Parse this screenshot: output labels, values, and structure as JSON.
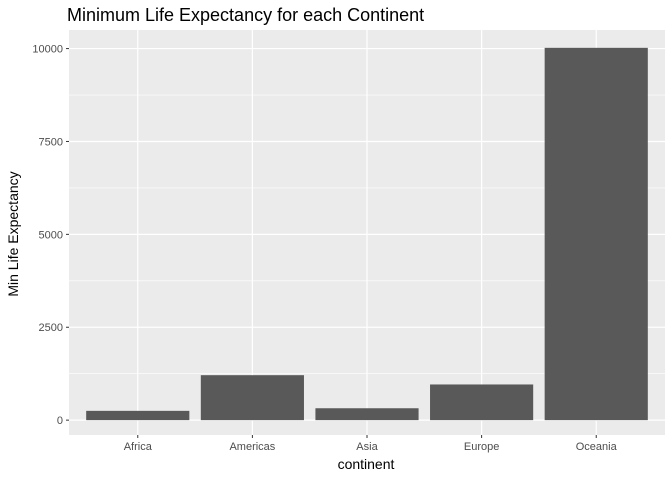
{
  "chart_data": {
    "type": "bar",
    "title": "Minimum Life Expectancy for each Continent",
    "xlabel": "continent",
    "ylabel": "Min Life Expectancy",
    "categories": [
      "Africa",
      "Americas",
      "Asia",
      "Europe",
      "Oceania"
    ],
    "values": [
      250,
      1210,
      320,
      960,
      10020
    ],
    "ylim": [
      -400,
      10500
    ],
    "yticks": [
      0,
      2500,
      5000,
      7500,
      10000
    ],
    "grid": true,
    "legend": "none"
  },
  "colors": {
    "panel_background": "#ebebeb",
    "grid_major": "#ffffff",
    "bar_fill": "#595959",
    "tick_color": "#333333"
  }
}
